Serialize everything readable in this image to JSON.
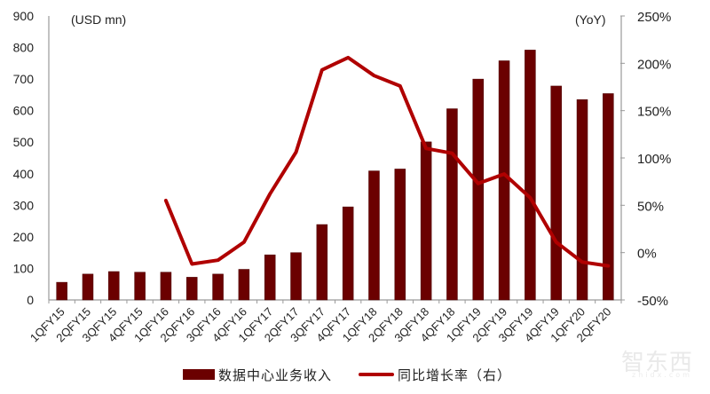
{
  "chart_data": {
    "type": "bar+line",
    "title": "",
    "left_axis_unit": "(USD mn)",
    "right_axis_unit": "(YoY)",
    "xlabel": "",
    "ylabel": "USD mn",
    "y2label": "YoY",
    "ylim": [
      0,
      900
    ],
    "y_ticks": [
      0,
      100,
      200,
      300,
      400,
      500,
      600,
      700,
      800,
      900
    ],
    "y2lim": [
      -50,
      250
    ],
    "y2_ticks": [
      "-50%",
      "0%",
      "50%",
      "100%",
      "150%",
      "200%",
      "250%"
    ],
    "y2_tick_values": [
      -50,
      0,
      50,
      100,
      150,
      200,
      250
    ],
    "grid": false,
    "legend_position": "bottom",
    "categories": [
      "1QFY15",
      "2QFY15",
      "3QFY15",
      "4QFY15",
      "1QFY16",
      "2QFY16",
      "3QFY16",
      "4QFY16",
      "1QFY17",
      "2QFY17",
      "3QFY17",
      "4QFY17",
      "1QFY18",
      "2QFY18",
      "3QFY18",
      "4QFY18",
      "1QFY19",
      "2QFY19",
      "3QFY19",
      "4QFY19",
      "1QFY20",
      "2QFY20"
    ],
    "series": [
      {
        "name": "数据中心业务收入",
        "type": "bar",
        "axis": "left",
        "color": "#6b0000",
        "values": [
          56,
          82,
          90,
          88,
          88,
          72,
          82,
          97,
          143,
          150,
          239,
          295,
          409,
          415,
          501,
          606,
          700,
          758,
          792,
          678,
          635,
          654
        ]
      },
      {
        "name": "同比增长率（右）",
        "type": "line",
        "axis": "right",
        "color": "#b00000",
        "values": [
          null,
          null,
          null,
          null,
          55,
          -12,
          -8,
          11,
          62,
          106,
          193,
          206,
          187,
          176,
          110,
          105,
          73,
          83,
          58,
          11,
          -10,
          -14
        ]
      }
    ]
  },
  "legend": {
    "bar_label": "数据中心业务收入",
    "line_label": "同比增长率（右）"
  },
  "watermark": {
    "text": "智东西",
    "sub": "zhidx.com"
  }
}
